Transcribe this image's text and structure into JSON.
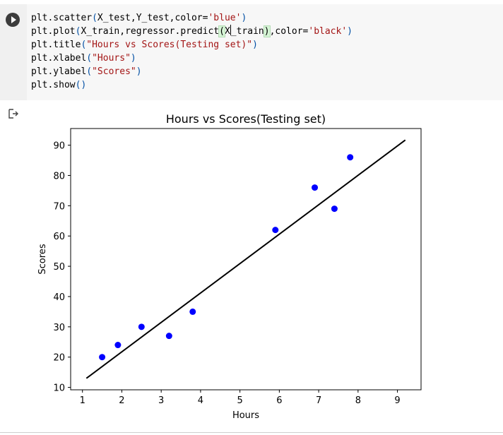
{
  "code": {
    "lines": [
      [
        {
          "t": "plt.scatter"
        },
        {
          "t": "(",
          "c": "paren"
        },
        {
          "t": "X_test,Y_test,color="
        },
        {
          "t": "'blue'",
          "c": "str"
        },
        {
          "t": ")",
          "c": "paren"
        }
      ],
      [
        {
          "t": "plt.plot"
        },
        {
          "t": "(",
          "c": "paren"
        },
        {
          "t": "X_train,regressor.predict"
        },
        {
          "t": "(",
          "c": "hl"
        },
        {
          "t": "X"
        },
        {
          "t": "",
          "c": "cursor"
        },
        {
          "t": "_train"
        },
        {
          "t": ")",
          "c": "hl"
        },
        {
          "t": ",color="
        },
        {
          "t": "'black'",
          "c": "str"
        },
        {
          "t": ")",
          "c": "paren"
        }
      ],
      [
        {
          "t": "plt.title"
        },
        {
          "t": "(",
          "c": "paren"
        },
        {
          "t": "\"Hours vs Scores(Testing set)\"",
          "c": "str"
        },
        {
          "t": ")",
          "c": "paren"
        }
      ],
      [
        {
          "t": "plt.xlabel"
        },
        {
          "t": "(",
          "c": "paren"
        },
        {
          "t": "\"Hours\"",
          "c": "str"
        },
        {
          "t": ")",
          "c": "paren"
        }
      ],
      [
        {
          "t": "plt.ylabel"
        },
        {
          "t": "(",
          "c": "paren"
        },
        {
          "t": "\"Scores\"",
          "c": "str"
        },
        {
          "t": ")",
          "c": "paren"
        }
      ],
      [
        {
          "t": "plt.show"
        },
        {
          "t": "()",
          "c": "paren"
        }
      ]
    ]
  },
  "output": {
    "icon": "output-arrow-icon"
  },
  "chart_data": {
    "type": "scatter",
    "title": "Hours vs Scores(Testing set)",
    "xlabel": "Hours",
    "ylabel": "Scores",
    "xlim": [
      0.7,
      9.6
    ],
    "ylim": [
      9.2,
      95.5
    ],
    "xticks": [
      1,
      2,
      3,
      4,
      5,
      6,
      7,
      8,
      9
    ],
    "yticks": [
      10,
      20,
      30,
      40,
      50,
      60,
      70,
      80,
      90
    ],
    "grid": false,
    "series": [
      {
        "kind": "scatter",
        "color": "#0000ff",
        "x": [
          1.5,
          1.9,
          2.5,
          3.2,
          3.8,
          5.9,
          6.9,
          7.4,
          7.8
        ],
        "y": [
          20,
          24,
          30,
          27,
          35,
          62,
          76,
          69,
          86
        ]
      },
      {
        "kind": "line",
        "color": "#000000",
        "x": [
          1.1,
          9.2
        ],
        "y": [
          13.0,
          91.7
        ]
      }
    ]
  }
}
